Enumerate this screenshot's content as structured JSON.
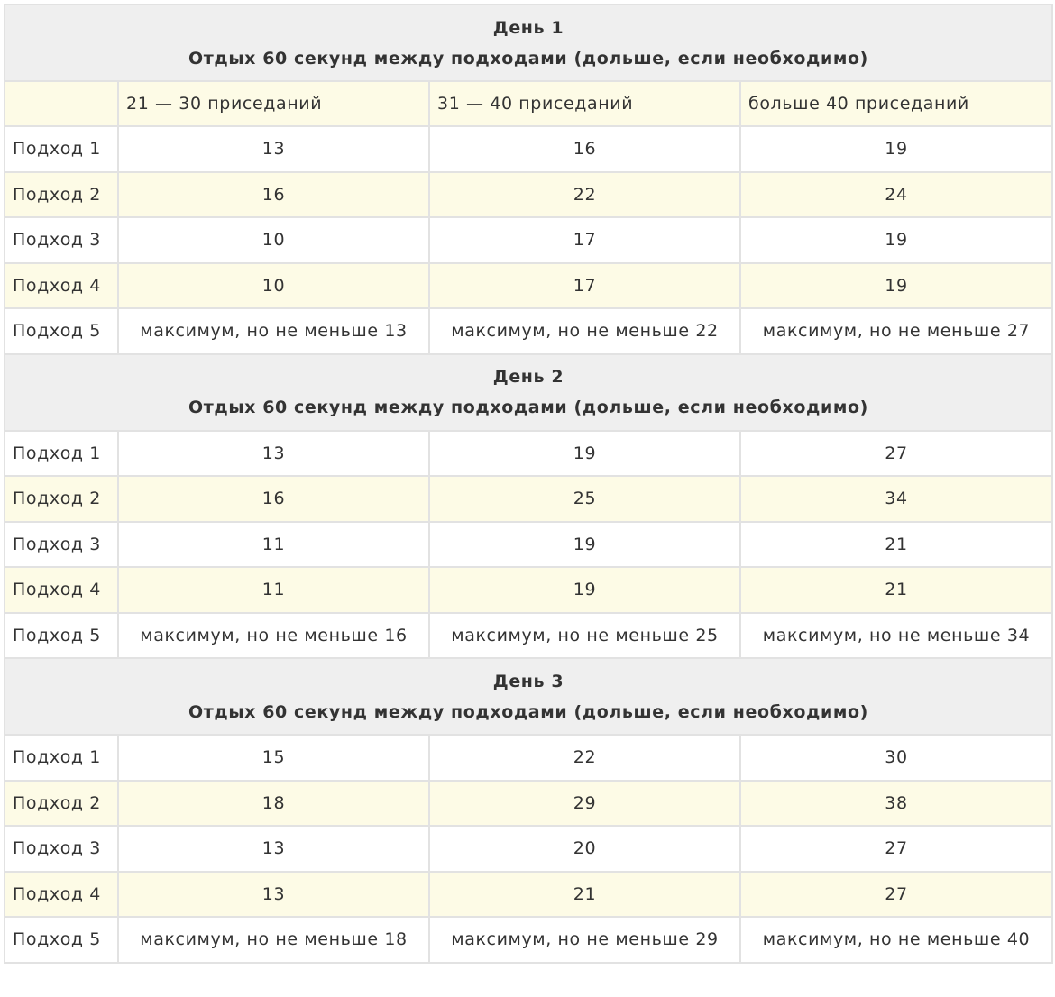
{
  "columns": [
    "21 — 30 приседаний",
    "31 — 40 приседаний",
    "больше 40 приседаний"
  ],
  "days": [
    {
      "title": "День 1",
      "subtitle": "Отдых 60 секунд между подходами (дольше, если необходимо)",
      "rows": [
        {
          "label": "Подход 1",
          "cells": [
            13,
            16,
            19
          ]
        },
        {
          "label": "Подход 2",
          "cells": [
            16,
            22,
            24
          ]
        },
        {
          "label": "Подход 3",
          "cells": [
            10,
            17,
            19
          ]
        },
        {
          "label": "Подход 4",
          "cells": [
            10,
            17,
            19
          ]
        },
        {
          "label": "Подход 5",
          "cells": [
            "максимум, но не меньше 13",
            "максимум, но не меньше 22",
            "максимум, но не меньше 27"
          ]
        }
      ]
    },
    {
      "title": "День 2",
      "subtitle": "Отдых 60 секунд между подходами (дольше, если необходимо)",
      "rows": [
        {
          "label": "Подход 1",
          "cells": [
            13,
            19,
            27
          ]
        },
        {
          "label": "Подход 2",
          "cells": [
            16,
            25,
            34
          ]
        },
        {
          "label": "Подход 3",
          "cells": [
            11,
            19,
            21
          ]
        },
        {
          "label": "Подход 4",
          "cells": [
            11,
            19,
            21
          ]
        },
        {
          "label": "Подход 5",
          "cells": [
            "максимум, но не меньше 16",
            "максимум, но не меньше 25",
            "максимум, но не меньше 34"
          ]
        }
      ]
    },
    {
      "title": "День 3",
      "subtitle": "Отдых 60 секунд между подходами (дольше, если необходимо)",
      "rows": [
        {
          "label": "Подход 1",
          "cells": [
            15,
            22,
            30
          ]
        },
        {
          "label": "Подход 2",
          "cells": [
            18,
            29,
            38
          ]
        },
        {
          "label": "Подход 3",
          "cells": [
            13,
            20,
            27
          ]
        },
        {
          "label": "Подход 4",
          "cells": [
            13,
            21,
            27
          ]
        },
        {
          "label": "Подход 5",
          "cells": [
            "максимум, но не меньше 18",
            "максимум, но не меньше 29",
            "максимум, но не меньше 40"
          ]
        }
      ]
    }
  ]
}
